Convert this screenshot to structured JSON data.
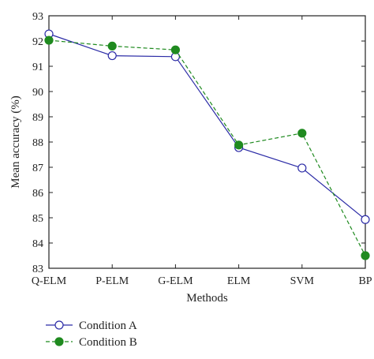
{
  "chart_data": {
    "type": "line",
    "categories": [
      "Q-ELM",
      "P-ELM",
      "G-ELM",
      "ELM",
      "SVM",
      "BP"
    ],
    "series": [
      {
        "name": "Condition A",
        "values": [
          92.28,
          91.42,
          91.38,
          87.78,
          86.97,
          84.93
        ],
        "color": "#2b2ba6",
        "line": "solid",
        "marker": "open-circle"
      },
      {
        "name": "Condition B",
        "values": [
          92.03,
          91.8,
          91.65,
          87.88,
          88.35,
          83.5
        ],
        "color": "#1f8a1f",
        "line": "dashed",
        "marker": "filled-circle"
      }
    ],
    "title": "",
    "xlabel": "Methods",
    "ylabel": "Mean accuracy (%)",
    "ylim": [
      83,
      93
    ],
    "yticks": [
      "83",
      "84",
      "85",
      "86",
      "87",
      "88",
      "89",
      "90",
      "91",
      "92",
      "93"
    ],
    "grid": false,
    "legend_position": "below"
  }
}
